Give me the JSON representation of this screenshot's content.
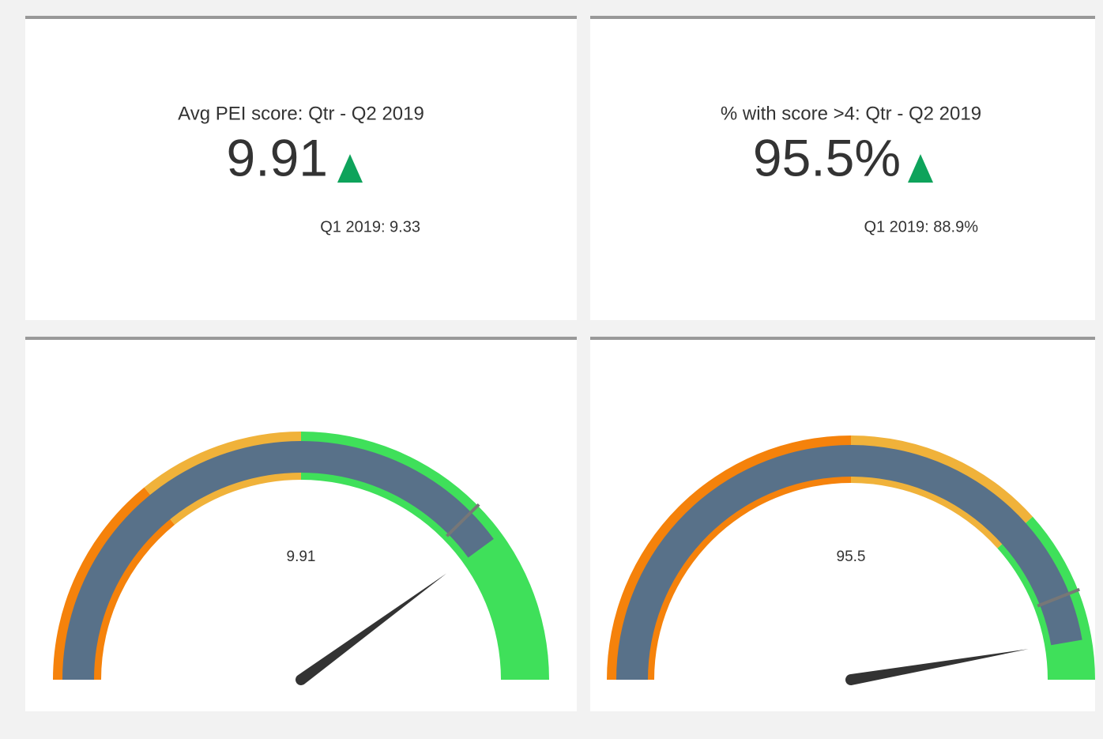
{
  "kpis": [
    {
      "title": "Avg PEI score: Qtr - Q2 2019",
      "value": "9.91",
      "comparison": "Q1 2019: 9.33"
    },
    {
      "title": "% with score >4: Qtr - Q2 2019",
      "value": "95.5%",
      "comparison": "Q1 2019: 88.9%"
    }
  ],
  "chart_data": [
    {
      "type": "gauge",
      "value": 9.91,
      "target": 9.33,
      "range": [
        0,
        12.4
      ],
      "bar_color": "#587189",
      "bands": [
        {
          "to": 3.5,
          "color": "#f5820b"
        },
        {
          "to": 6.2,
          "color": "#f0b23a"
        },
        {
          "to": 12.4,
          "color": "#3fe05a"
        }
      ]
    },
    {
      "type": "gauge",
      "value": 95.5,
      "target": 88.9,
      "range": [
        0,
        101
      ],
      "bar_color": "#587189",
      "bands": [
        {
          "to": 50.5,
          "color": "#f5820b"
        },
        {
          "to": 77.5,
          "color": "#f0b23a"
        },
        {
          "to": 101,
          "color": "#3fe05a"
        }
      ]
    }
  ]
}
